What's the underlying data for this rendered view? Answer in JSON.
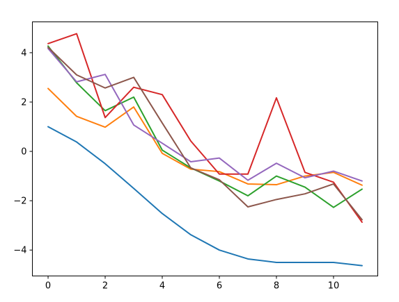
{
  "chart_data": {
    "type": "line",
    "title": "",
    "xlabel": "",
    "ylabel": "",
    "xlim": [
      -0.55,
      11.55
    ],
    "ylim": [
      -5.05,
      5.25
    ],
    "x_ticks": [
      0,
      2,
      4,
      6,
      8,
      10
    ],
    "y_ticks": [
      -4,
      -2,
      0,
      2,
      4
    ],
    "grid": false,
    "legend": "none",
    "x": [
      0,
      1,
      2,
      3,
      4,
      5,
      6,
      7,
      8,
      9,
      10,
      11
    ],
    "series": [
      {
        "color": "#1f77b4",
        "values": [
          1.0,
          0.38,
          -0.5,
          -1.5,
          -2.52,
          -3.38,
          -4.0,
          -4.36,
          -4.5,
          -4.5,
          -4.5,
          -4.63
        ]
      },
      {
        "color": "#ff7f0e",
        "values": [
          2.55,
          1.42,
          0.98,
          1.8,
          -0.08,
          -0.72,
          -0.82,
          -1.32,
          -1.35,
          -1.0,
          -0.85,
          -1.37
        ]
      },
      {
        "color": "#2ca02c",
        "values": [
          4.27,
          2.78,
          1.65,
          2.2,
          0.05,
          -0.67,
          -1.2,
          -1.8,
          -1.0,
          -1.45,
          -2.27,
          -1.53
        ]
      },
      {
        "color": "#d62728",
        "values": [
          4.37,
          4.77,
          1.37,
          2.6,
          2.3,
          0.42,
          -0.92,
          -0.92,
          2.17,
          -0.85,
          -1.25,
          -2.87
        ]
      },
      {
        "color": "#9467bd",
        "values": [
          4.17,
          2.82,
          3.12,
          1.07,
          0.33,
          -0.42,
          -0.27,
          -1.17,
          -0.48,
          -1.07,
          -0.8,
          -1.2
        ]
      },
      {
        "color": "#8c564b",
        "values": [
          4.22,
          3.1,
          2.57,
          3.0,
          1.15,
          -0.67,
          -1.15,
          -2.25,
          -1.95,
          -1.72,
          -1.32,
          -2.77
        ]
      }
    ]
  }
}
